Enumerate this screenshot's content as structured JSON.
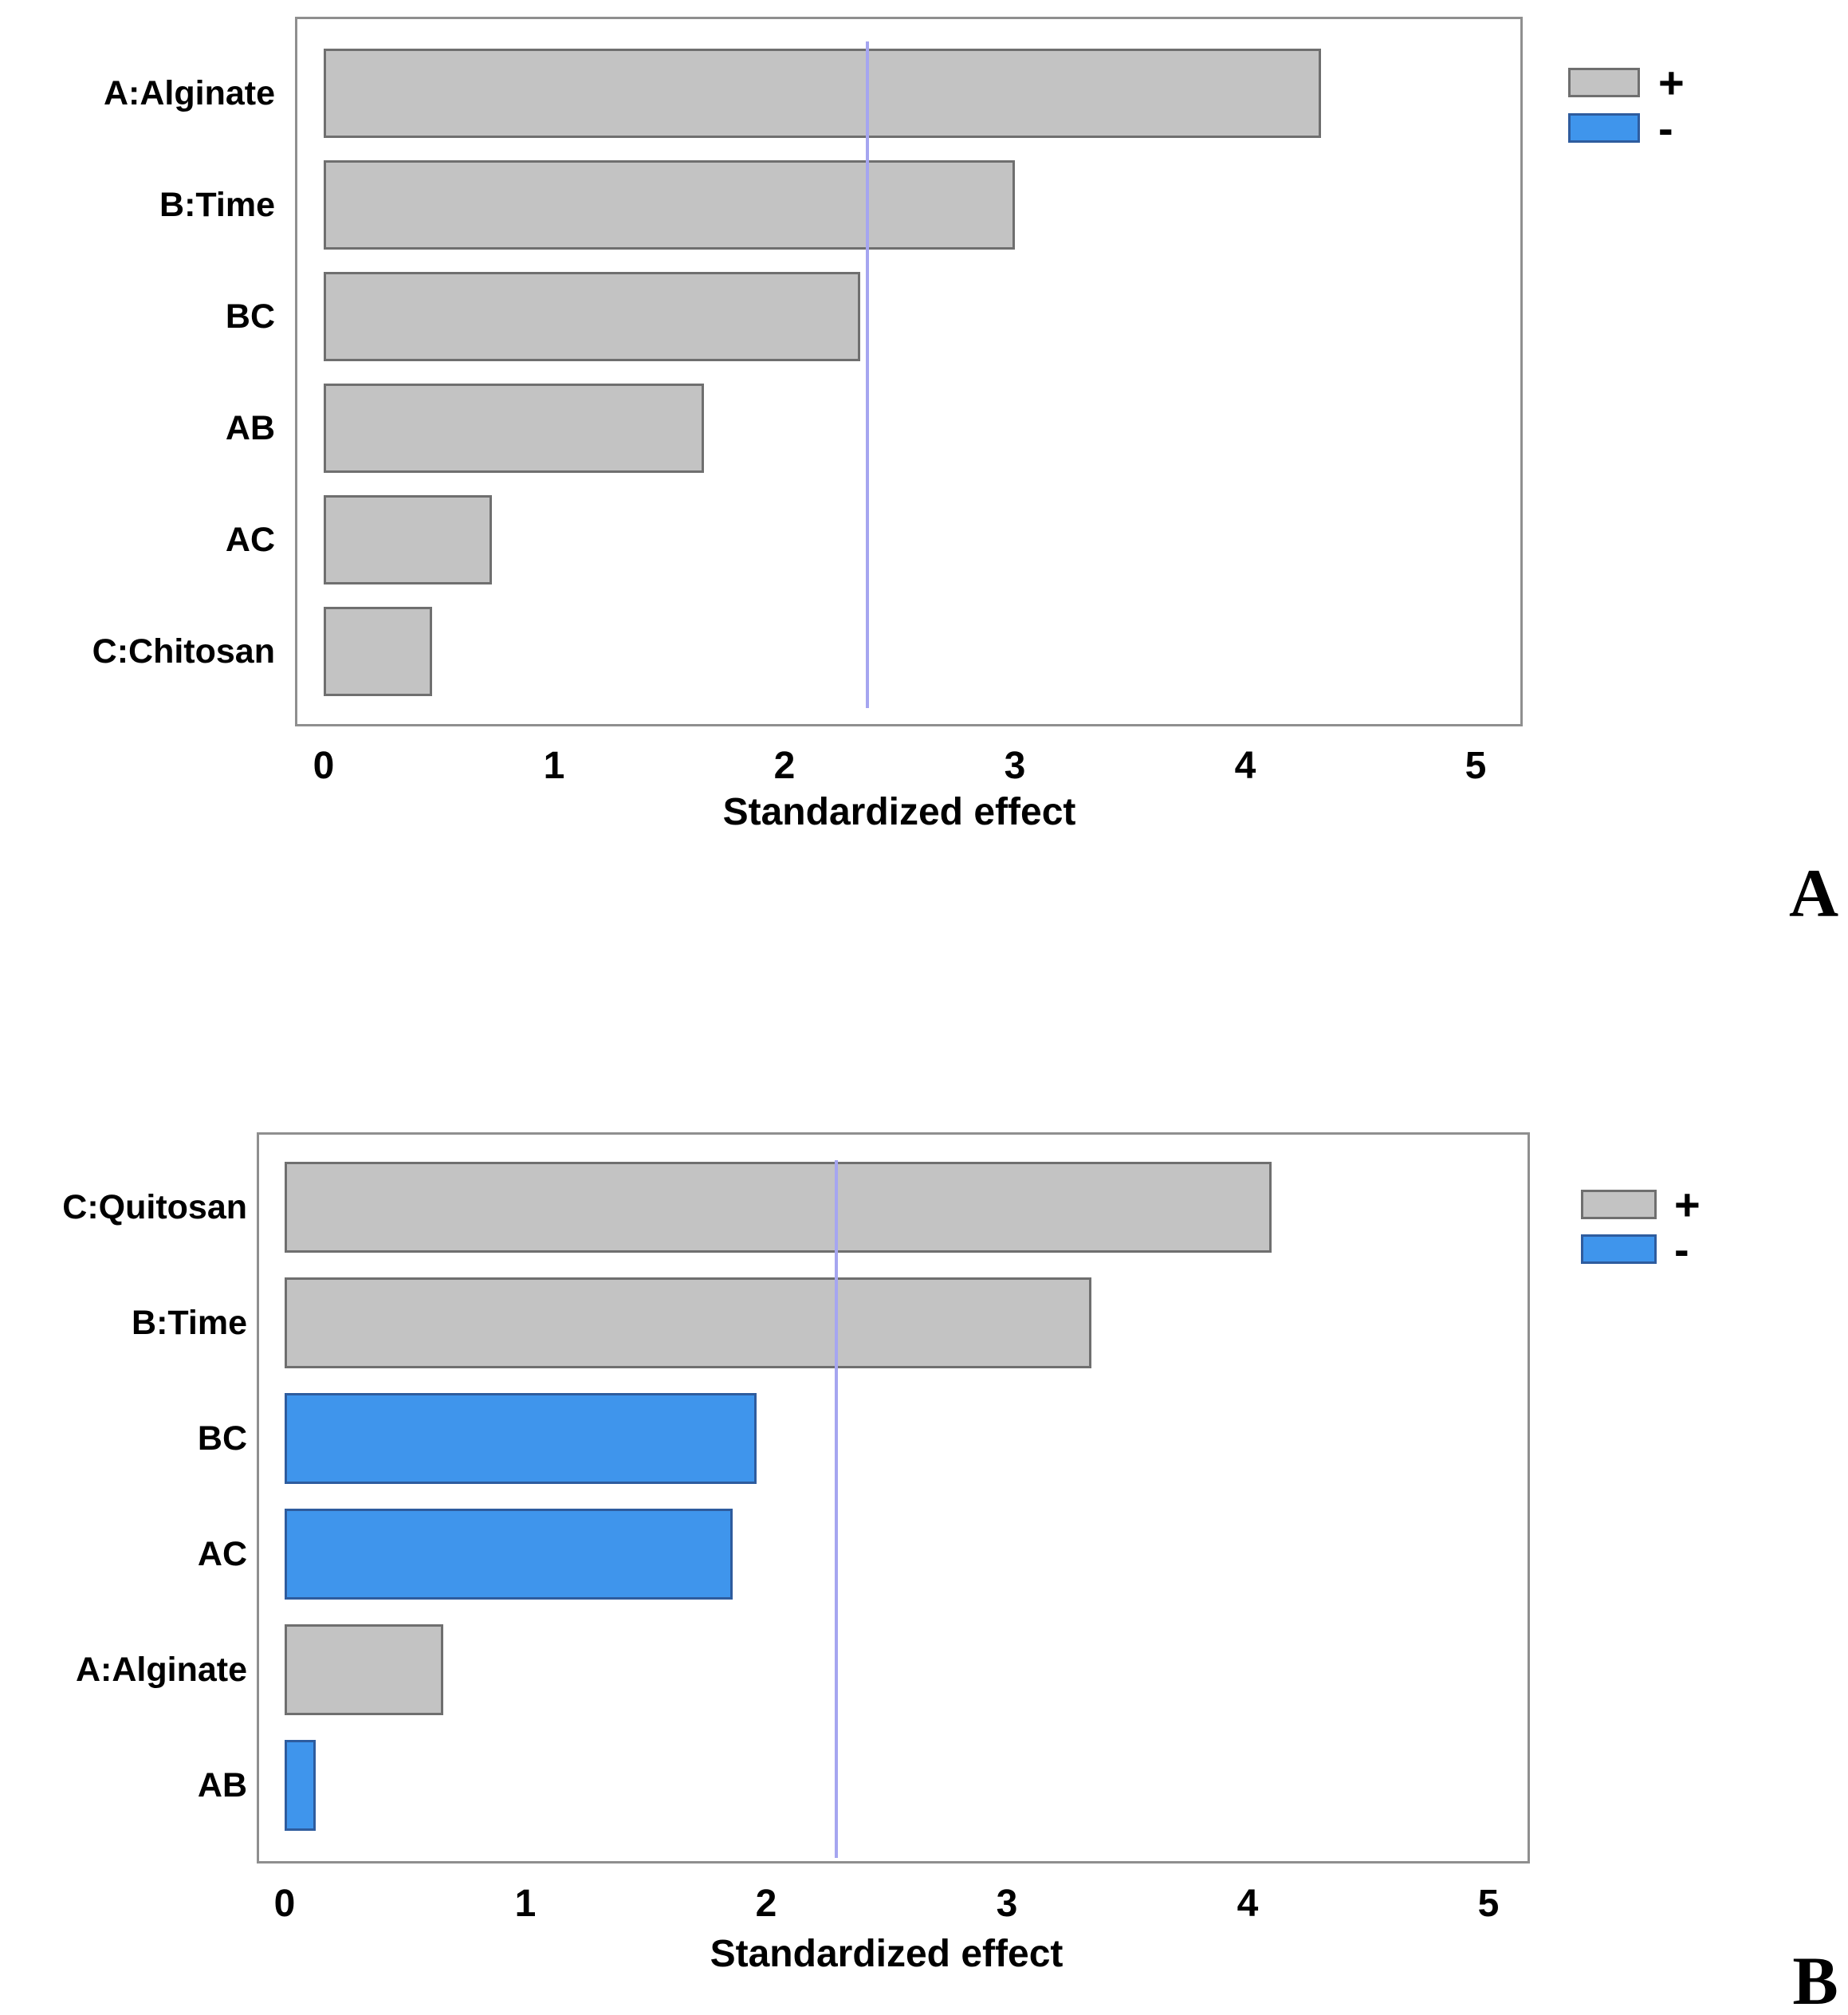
{
  "colors": {
    "plus_fill": "#c3c3c3",
    "plus_border": "#6f6f6f",
    "minus_fill": "#3f95ec",
    "minus_border": "#2e5c9e",
    "reference_line": "#a5a5f0",
    "plot_border": "#8f8f8f",
    "text": "#000000"
  },
  "chart_data": [
    {
      "type": "bar",
      "orientation": "horizontal",
      "panel_label": "A",
      "xlabel": "Standardized effect",
      "xlim": [
        0,
        5
      ],
      "x_ticks": [
        0,
        1,
        2,
        3,
        4,
        5
      ],
      "grid": false,
      "legend_position": "right-outside",
      "categories": [
        "A:Alginate",
        "B:Time",
        "BC",
        "AB",
        "AC",
        "C:Chitosan"
      ],
      "values": [
        4.33,
        3.0,
        2.33,
        1.65,
        0.73,
        0.47
      ],
      "signs": [
        "+",
        "+",
        "+",
        "+",
        "+",
        "+"
      ],
      "reference_line_x": 2.36,
      "legend": [
        {
          "label": "+",
          "sign": "+"
        },
        {
          "label": "-",
          "sign": "-"
        }
      ]
    },
    {
      "type": "bar",
      "orientation": "horizontal",
      "panel_label": "B",
      "xlabel": "Standardized effect",
      "xlim": [
        0,
        5
      ],
      "x_ticks": [
        0,
        1,
        2,
        3,
        4,
        5
      ],
      "grid": false,
      "legend_position": "right-outside",
      "categories": [
        "C:Quitosan",
        "B:Time",
        "BC",
        "AC",
        "A:Alginate",
        "AB"
      ],
      "values": [
        4.1,
        3.35,
        1.96,
        1.86,
        0.66,
        0.13
      ],
      "signs": [
        "+",
        "+",
        "-",
        "-",
        "+",
        "-"
      ],
      "reference_line_x": 2.29,
      "legend": [
        {
          "label": "+",
          "sign": "+"
        },
        {
          "label": "-",
          "sign": "-"
        }
      ]
    }
  ]
}
